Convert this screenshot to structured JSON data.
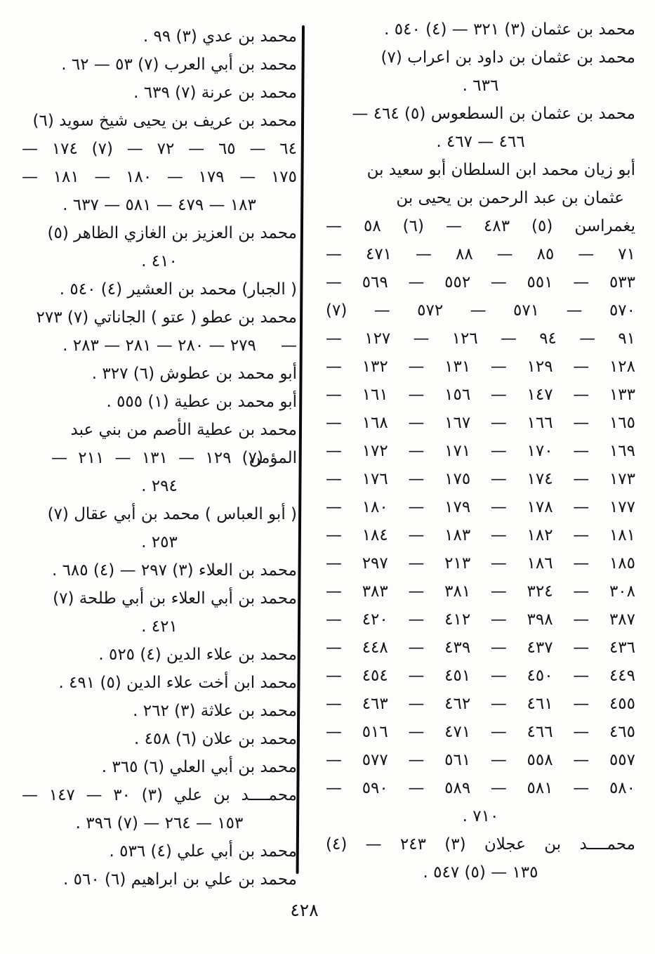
{
  "page": {
    "number": "٤٢٨"
  },
  "columns": {
    "right": {
      "entries": [
        {
          "lines": [
            {
              "t": "محمد بن عثمان (٣) ٣٢١ — (٤) ٥٤٠ .",
              "a": "start"
            }
          ]
        },
        {
          "lines": [
            {
              "t": "محمد بن عثمان بن داود بن اعراب (٧)",
              "a": "start"
            },
            {
              "t": "٦٣٦ .",
              "a": "center"
            }
          ]
        },
        {
          "lines": [
            {
              "t": "محمد بن عثمان بن السطعوس (٥) ٤٦٤ —",
              "a": "start"
            },
            {
              "t": "٤٦٦ — ٤٦٧ .",
              "a": "center"
            }
          ]
        },
        {
          "lines": [
            {
              "t": "أبو زيان محمد ابن السلطان أبو سعيد بن",
              "a": "start"
            },
            {
              "t": "عثمان بن عبد الرحمن بن يحيى بن",
              "a": "cont"
            },
            {
              "t": "يغمراسن (٥) ٤٨٣ — (٦) ٥٨ —",
              "a": "chain"
            },
            {
              "t": "٧١ — ٨٥ — ٨٨ — ٤٧١ —",
              "a": "chain"
            },
            {
              "t": "٥٣٣ — ٥٥١ — ٥٥٢ — ٥٦٩ —",
              "a": "chain"
            },
            {
              "t": "٥٧٠ — ٥٧١ — ٥٧٢ — (٧)",
              "a": "chain"
            },
            {
              "t": "٩١ — ٩٤ — ١٢٦ — ١٢٧ —",
              "a": "chain"
            },
            {
              "t": "١٢٨ — ١٢٩ — ١٣١ — ١٣٢ —",
              "a": "chain"
            },
            {
              "t": "١٣٣ — ١٤٧ — ١٥٦ — ١٦١ —",
              "a": "chain"
            },
            {
              "t": "١٦٥ — ١٦٦ — ١٦٧ — ١٦٨ —",
              "a": "chain"
            },
            {
              "t": "١٦٩ — ١٧٠ — ١٧١ — ١٧٢ —",
              "a": "chain"
            },
            {
              "t": "١٧٣ — ١٧٤ — ١٧٥ — ١٧٦ —",
              "a": "chain"
            },
            {
              "t": "١٧٧ — ١٧٨ — ١٧٩ — ١٨٠ —",
              "a": "chain"
            },
            {
              "t": "١٨١ — ١٨٢ — ١٨٣ — ١٨٤ —",
              "a": "chain"
            },
            {
              "t": "١٨٥ — ١٨٦ — ٢١٣ — ٢٩٧ —",
              "a": "chain"
            },
            {
              "t": "٣٠٨ — ٣٢٤ — ٣٨١ — ٣٨٣ —",
              "a": "chain"
            },
            {
              "t": "٣٨٧ — ٣٩٨ — ٤١٢ — ٤٢٠ —",
              "a": "chain"
            },
            {
              "t": "٤٣٦ — ٤٣٧ — ٤٣٩ — ٤٤٨ —",
              "a": "chain"
            },
            {
              "t": "٤٤٩ — ٤٥٠ — ٤٥١ — ٤٥٤ —",
              "a": "chain"
            },
            {
              "t": "٤٥٥ — ٤٦١ — ٤٦٢ — ٤٦٣ —",
              "a": "chain"
            },
            {
              "t": "٤٦٥ — ٤٦٦ — ٤٧١ — ٥١٦ —",
              "a": "chain"
            },
            {
              "t": "٥٥٧ — ٥٥٨ — ٥٦١ — ٥٧٧ —",
              "a": "chain"
            },
            {
              "t": "٥٨٠ — ٥٨١ — ٥٨٩ — ٥٩٠ —",
              "a": "chain"
            },
            {
              "t": "٧١٠ .",
              "a": "center"
            }
          ]
        },
        {
          "lines": [
            {
              "t": "محمــــد بن عجلان (٣) ٢٤٣ — (٤)",
              "a": "chain"
            },
            {
              "t": "١٣٥ — (٥) ٥٤٧ .",
              "a": "center"
            }
          ]
        }
      ]
    },
    "left": {
      "entries": [
        {
          "lines": [
            {
              "t": "محمد بن عدي (٣) ٩٩ .",
              "a": "start"
            }
          ]
        },
        {
          "lines": [
            {
              "t": "محمد بن أبي العرب (٧) ٥٣ — ٦٢ .",
              "a": "start"
            }
          ]
        },
        {
          "lines": [
            {
              "t": "محمد بن عرنة (٧) ٦٣٩ .",
              "a": "start"
            }
          ]
        },
        {
          "lines": [
            {
              "t": "محمد بن عريف بن يحيى شيخ سويد (٦)",
              "a": "start"
            },
            {
              "t": "٦٤ — ٦٥ — ٧٢ — (٧) ١٧٤ —",
              "a": "chain"
            },
            {
              "t": "١٧٥ — ١٧٩ — ١٨٠ — ١٨١ —",
              "a": "chain"
            },
            {
              "t": "١٨٣ — ٤٧٩ — ٥٨١ — ٦٣٧ .",
              "a": "center"
            }
          ]
        },
        {
          "lines": [
            {
              "t": "محمد بن العزيز بن الغازي الظاهر (٥)",
              "a": "start"
            },
            {
              "t": "٤١٠ .",
              "a": "center"
            }
          ]
        },
        {
          "lines": [
            {
              "t": "( الجبار) محمد بن العشير (٤) ٥٤٠ .",
              "a": "start"
            }
          ]
        },
        {
          "lines": [
            {
              "t": "محمد بن عطو ( عتو ) الجاناتي (٧) ٢٧٣ —",
              "a": "start"
            },
            {
              "t": "٢٧٩ — ٢٨٠ — ٢٨١ — ٢٨٣ .",
              "a": "center"
            }
          ]
        },
        {
          "lines": [
            {
              "t": "أبو محمد بن عطوش (٦) ٣٢٧ .",
              "a": "start"
            }
          ]
        },
        {
          "lines": [
            {
              "t": "أبو محمد بن عطية (١) ٥٥٥ .",
              "a": "start"
            }
          ]
        },
        {
          "lines": [
            {
              "t": "محمد بن عطية الأصم من بني عبد المؤمن",
              "a": "start"
            },
            {
              "t": "(٧) ١٢٩ — ١٣١ — ٢١١ —",
              "a": "chainpad"
            },
            {
              "t": "٢٩٤ .",
              "a": "center"
            }
          ]
        },
        {
          "lines": [
            {
              "t": "( أبو العباس ) محمد بن أبي عقال (٧)",
              "a": "start"
            },
            {
              "t": "٢٥٣ .",
              "a": "center"
            }
          ]
        },
        {
          "lines": [
            {
              "t": "محمد بن العلاء (٣) ٢٩٧ — (٤) ٦٨٥ .",
              "a": "start"
            }
          ]
        },
        {
          "lines": [
            {
              "t": "محمد بن أبي العلاء بن أبي طلحة (٧)",
              "a": "start"
            },
            {
              "t": "٤٢١ .",
              "a": "center"
            }
          ]
        },
        {
          "lines": [
            {
              "t": "محمد بن علاء الدين (٤) ٥٢٥ .",
              "a": "start"
            }
          ]
        },
        {
          "lines": [
            {
              "t": "محمد ابن أخت علاء الدين (٥) ٤٩١ .",
              "a": "start"
            }
          ]
        },
        {
          "lines": [
            {
              "t": "محمد بن علاثة (٣) ٢٦٢ .",
              "a": "start"
            }
          ]
        },
        {
          "lines": [
            {
              "t": "محمد بن علان (٦) ٤٥٨ .",
              "a": "start"
            }
          ]
        },
        {
          "lines": [
            {
              "t": "محمد بن أبي العلي (٦) ٣٦٥ .",
              "a": "start"
            }
          ]
        },
        {
          "lines": [
            {
              "t": "محمــــد بن علي (٣) ٣٠ — ١٤٧ —",
              "a": "chain"
            },
            {
              "t": "١٥٣ — ٢٦٤ — (٧) ٣٩٦ .",
              "a": "center"
            }
          ]
        },
        {
          "lines": [
            {
              "t": "محمد بن أبي علي (٤) ٥٣٦ .",
              "a": "start"
            }
          ]
        },
        {
          "lines": [
            {
              "t": "محمد بن علي بن ابراهيم (٦) ٥٦٠ .",
              "a": "start"
            }
          ]
        }
      ]
    }
  }
}
